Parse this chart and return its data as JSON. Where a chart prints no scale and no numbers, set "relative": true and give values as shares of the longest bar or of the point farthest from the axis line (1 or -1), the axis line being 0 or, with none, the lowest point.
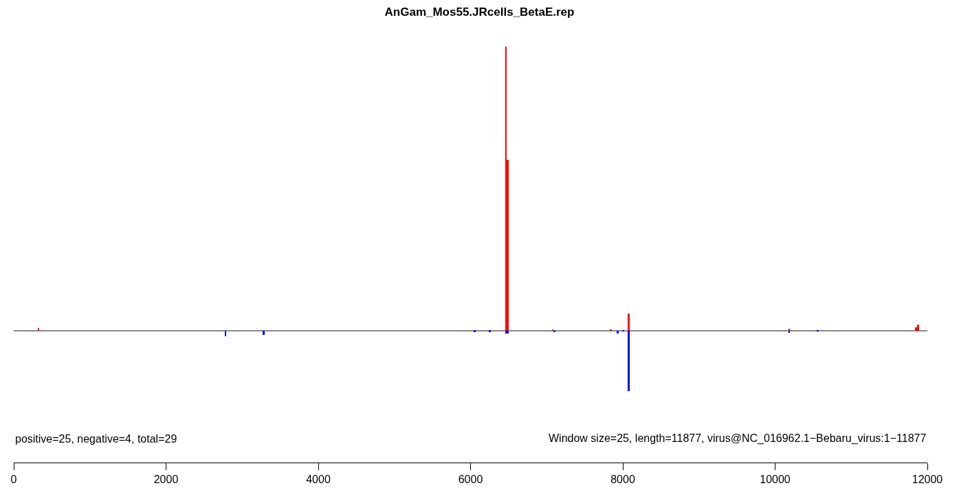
{
  "chart_data": {
    "type": "bar",
    "title": "AnGam_Mos55.JRcells_BetaE.rep",
    "relative": true,
    "series": [
      {
        "color": "#ff0000",
        "x": [
          325,
          6465,
          6490,
          7080,
          7840,
          8075,
          10185,
          11850,
          11875
        ],
        "values": [
          0.01,
          1.0,
          0.6,
          0.004,
          0.004,
          0.061,
          0.006,
          0.012,
          0.022
        ]
      },
      {
        "color": "#0000ff",
        "x": [
          2780,
          3280,
          6055,
          6255,
          6465,
          6490,
          7100,
          7935,
          8005,
          8075,
          10185,
          10560
        ],
        "values": [
          -0.02,
          -0.016,
          -0.004,
          -0.004,
          -0.01,
          -0.01,
          -0.006,
          -0.01,
          -0.003,
          -0.213,
          -0.0075,
          -0.003
        ]
      }
    ],
    "xlim": [
      0,
      12000
    ],
    "xticks": [
      0,
      2000,
      4000,
      6000,
      8000,
      10000,
      12000
    ],
    "tick_labels": "x",
    "grid": false,
    "annotations": [
      "positive=25, negative=4, total=29",
      "Window size=25, length=11877, virus@NC_016962.1−Bebaru_virus:1−11877"
    ]
  }
}
